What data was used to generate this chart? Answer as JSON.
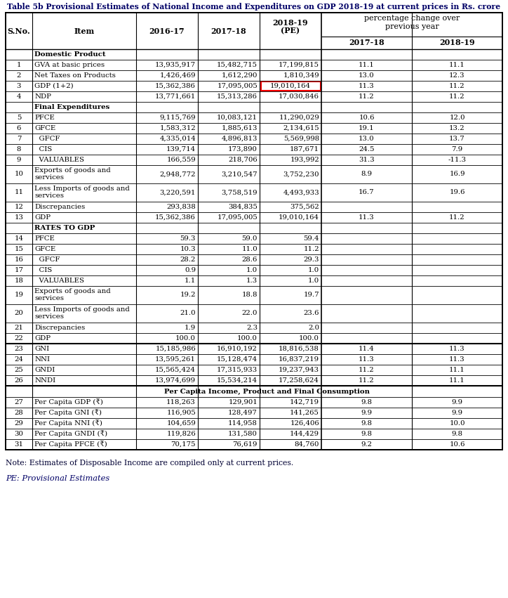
{
  "title": "Table 5b Provisional Estimates of National Income and Expenditures on GDP 2018-19 at current prices in Rs. crore",
  "note": "Note: Estimates of Disposable Income are compiled only at current prices.",
  "pe_note": "PE: Provisional Estimates",
  "rows": [
    {
      "sno": "",
      "item": "Domestic Product",
      "v1": "",
      "v2": "",
      "v3": "",
      "p1": "",
      "p2": "",
      "bold": true,
      "section_header": true
    },
    {
      "sno": "1",
      "item": "GVA at basic prices",
      "v1": "13,935,917",
      "v2": "15,482,715",
      "v3": "17,199,815",
      "p1": "11.1",
      "p2": "11.1"
    },
    {
      "sno": "2",
      "item": "Net Taxes on Products",
      "v1": "1,426,469",
      "v2": "1,612,290",
      "v3": "1,810,349",
      "p1": "13.0",
      "p2": "12.3"
    },
    {
      "sno": "3",
      "item": "GDP (1+2)",
      "v1": "15,362,386",
      "v2": "17,095,005",
      "v3": "19,010,164",
      "p1": "11.3",
      "p2": "11.2",
      "highlight": true
    },
    {
      "sno": "4",
      "item": "NDP",
      "v1": "13,771,661",
      "v2": "15,313,286",
      "v3": "17,030,846",
      "p1": "11.2",
      "p2": "11.2"
    },
    {
      "sno": "",
      "item": "Final Expenditures",
      "v1": "",
      "v2": "",
      "v3": "",
      "p1": "",
      "p2": "",
      "bold": true,
      "section_header": true
    },
    {
      "sno": "5",
      "item": "PFCE",
      "v1": "9,115,769",
      "v2": "10,083,121",
      "v3": "11,290,029",
      "p1": "10.6",
      "p2": "12.0"
    },
    {
      "sno": "6",
      "item": "GFCE",
      "v1": "1,583,312",
      "v2": "1,885,613",
      "v3": "2,134,615",
      "p1": "19.1",
      "p2": "13.2"
    },
    {
      "sno": "7",
      "item": "  GFCF",
      "v1": "4,335,014",
      "v2": "4,896,813",
      "v3": "5,569,998",
      "p1": "13.0",
      "p2": "13.7"
    },
    {
      "sno": "8",
      "item": "  CIS",
      "v1": "139,714",
      "v2": "173,890",
      "v3": "187,671",
      "p1": "24.5",
      "p2": "7.9"
    },
    {
      "sno": "9",
      "item": "  VALUABLES",
      "v1": "166,559",
      "v2": "218,706",
      "v3": "193,992",
      "p1": "31.3",
      "p2": "-11.3"
    },
    {
      "sno": "10",
      "item": "Exports of goods and\nservices",
      "v1": "2,948,772",
      "v2": "3,210,547",
      "v3": "3,752,230",
      "p1": "8.9",
      "p2": "16.9"
    },
    {
      "sno": "11",
      "item": "Less Imports of goods and\nservices",
      "v1": "3,220,591",
      "v2": "3,758,519",
      "v3": "4,493,933",
      "p1": "16.7",
      "p2": "19.6"
    },
    {
      "sno": "12",
      "item": "Discrepancies",
      "v1": "293,838",
      "v2": "384,835",
      "v3": "375,562",
      "p1": "",
      "p2": ""
    },
    {
      "sno": "13",
      "item": "GDP",
      "v1": "15,362,386",
      "v2": "17,095,005",
      "v3": "19,010,164",
      "p1": "11.3",
      "p2": "11.2"
    },
    {
      "sno": "",
      "item": "RATES TO GDP",
      "v1": "",
      "v2": "",
      "v3": "",
      "p1": "",
      "p2": "",
      "bold": true,
      "section_header": true
    },
    {
      "sno": "14",
      "item": "PFCE",
      "v1": "59.3",
      "v2": "59.0",
      "v3": "59.4",
      "p1": "",
      "p2": ""
    },
    {
      "sno": "15",
      "item": "GFCE",
      "v1": "10.3",
      "v2": "11.0",
      "v3": "11.2",
      "p1": "",
      "p2": ""
    },
    {
      "sno": "16",
      "item": "  GFCF",
      "v1": "28.2",
      "v2": "28.6",
      "v3": "29.3",
      "p1": "",
      "p2": ""
    },
    {
      "sno": "17",
      "item": "  CIS",
      "v1": "0.9",
      "v2": "1.0",
      "v3": "1.0",
      "p1": "",
      "p2": ""
    },
    {
      "sno": "18",
      "item": "  VALUABLES",
      "v1": "1.1",
      "v2": "1.3",
      "v3": "1.0",
      "p1": "",
      "p2": ""
    },
    {
      "sno": "19",
      "item": "Exports of goods and\nservices",
      "v1": "19.2",
      "v2": "18.8",
      "v3": "19.7",
      "p1": "",
      "p2": ""
    },
    {
      "sno": "20",
      "item": "Less Imports of goods and\nservices",
      "v1": "21.0",
      "v2": "22.0",
      "v3": "23.6",
      "p1": "",
      "p2": ""
    },
    {
      "sno": "21",
      "item": "Discrepancies",
      "v1": "1.9",
      "v2": "2.3",
      "v3": "2.0",
      "p1": "",
      "p2": ""
    },
    {
      "sno": "22",
      "item": "GDP",
      "v1": "100.0",
      "v2": "100.0",
      "v3": "100.0",
      "p1": "",
      "p2": ""
    },
    {
      "sno": "23",
      "item": "GNI",
      "v1": "15,185,986",
      "v2": "16,910,192",
      "v3": "18,816,538",
      "p1": "11.4",
      "p2": "11.3",
      "sep_above": true
    },
    {
      "sno": "24",
      "item": "NNI",
      "v1": "13,595,261",
      "v2": "15,128,474",
      "v3": "16,837,219",
      "p1": "11.3",
      "p2": "11.3"
    },
    {
      "sno": "25",
      "item": "GNDI",
      "v1": "15,565,424",
      "v2": "17,315,933",
      "v3": "19,237,943",
      "p1": "11.2",
      "p2": "11.1"
    },
    {
      "sno": "26",
      "item": "NNDI",
      "v1": "13,974,699",
      "v2": "15,534,214",
      "v3": "17,258,624",
      "p1": "11.2",
      "p2": "11.1"
    },
    {
      "sno": "",
      "item": "Per Capita Income, Product and Final Consumption",
      "v1": "",
      "v2": "",
      "v3": "",
      "p1": "",
      "p2": "",
      "bold": true,
      "section_header": true,
      "center_text": true,
      "sep_above": true
    },
    {
      "sno": "27",
      "item": "Per Capita GDP (₹)",
      "v1": "118,263",
      "v2": "129,901",
      "v3": "142,719",
      "p1": "9.8",
      "p2": "9.9"
    },
    {
      "sno": "28",
      "item": "Per Capita GNI (₹)",
      "v1": "116,905",
      "v2": "128,497",
      "v3": "141,265",
      "p1": "9.9",
      "p2": "9.9"
    },
    {
      "sno": "29",
      "item": "Per Capita NNI (₹)",
      "v1": "104,659",
      "v2": "114,958",
      "v3": "126,406",
      "p1": "9.8",
      "p2": "10.0"
    },
    {
      "sno": "30",
      "item": "Per Capita GNDI (₹)",
      "v1": "119,826",
      "v2": "131,580",
      "v3": "144,429",
      "p1": "9.8",
      "p2": "9.8"
    },
    {
      "sno": "31",
      "item": "Per Capita PFCE (₹)",
      "v1": "70,175",
      "v2": "76,619",
      "v3": "84,760",
      "p1": "9.2",
      "p2": "10.6"
    }
  ],
  "bg_color": "#ffffff",
  "border_color": "#000000",
  "title_color": "#000066",
  "note_color": "#000033",
  "pe_color": "#000066"
}
